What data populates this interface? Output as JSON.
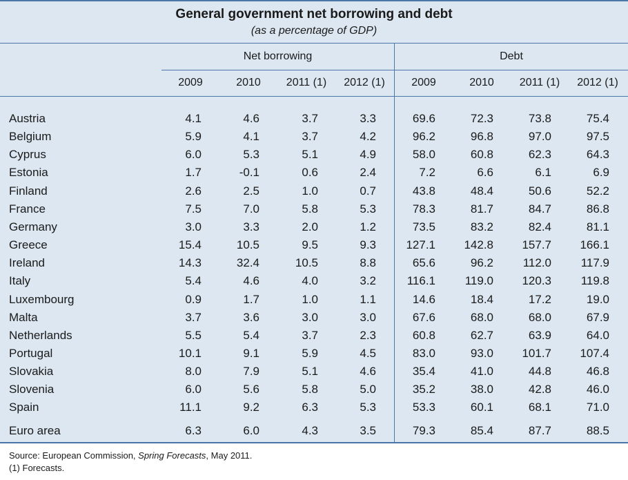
{
  "title": "General government net borrowing and debt",
  "subtitle": "(as a percentage of GDP)",
  "groups": {
    "net_borrowing": "Net borrowing",
    "debt": "Debt"
  },
  "years": [
    "2009",
    "2010",
    "2011 (1)",
    "2012 (1)",
    "2009",
    "2010",
    "2011 (1)",
    "2012 (1)"
  ],
  "rows": [
    {
      "country": "Austria",
      "values": [
        "4.1",
        "4.6",
        "3.7",
        "3.3",
        "69.6",
        "72.3",
        "73.8",
        "75.4"
      ]
    },
    {
      "country": "Belgium",
      "values": [
        "5.9",
        "4.1",
        "3.7",
        "4.2",
        "96.2",
        "96.8",
        "97.0",
        "97.5"
      ]
    },
    {
      "country": "Cyprus",
      "values": [
        "6.0",
        "5.3",
        "5.1",
        "4.9",
        "58.0",
        "60.8",
        "62.3",
        "64.3"
      ]
    },
    {
      "country": "Estonia",
      "values": [
        "1.7",
        "-0.1",
        "0.6",
        "2.4",
        "7.2",
        "6.6",
        "6.1",
        "6.9"
      ]
    },
    {
      "country": "Finland",
      "values": [
        "2.6",
        "2.5",
        "1.0",
        "0.7",
        "43.8",
        "48.4",
        "50.6",
        "52.2"
      ]
    },
    {
      "country": "France",
      "values": [
        "7.5",
        "7.0",
        "5.8",
        "5.3",
        "78.3",
        "81.7",
        "84.7",
        "86.8"
      ]
    },
    {
      "country": "Germany",
      "values": [
        "3.0",
        "3.3",
        "2.0",
        "1.2",
        "73.5",
        "83.2",
        "82.4",
        "81.1"
      ]
    },
    {
      "country": "Greece",
      "values": [
        "15.4",
        "10.5",
        "9.5",
        "9.3",
        "127.1",
        "142.8",
        "157.7",
        "166.1"
      ]
    },
    {
      "country": "Ireland",
      "values": [
        "14.3",
        "32.4",
        "10.5",
        "8.8",
        "65.6",
        "96.2",
        "112.0",
        "117.9"
      ]
    },
    {
      "country": "Italy",
      "values": [
        "5.4",
        "4.6",
        "4.0",
        "3.2",
        "116.1",
        "119.0",
        "120.3",
        "119.8"
      ]
    },
    {
      "country": "Luxembourg",
      "values": [
        "0.9",
        "1.7",
        "1.0",
        "1.1",
        "14.6",
        "18.4",
        "17.2",
        "19.0"
      ]
    },
    {
      "country": "Malta",
      "values": [
        "3.7",
        "3.6",
        "3.0",
        "3.0",
        "67.6",
        "68.0",
        "68.0",
        "67.9"
      ]
    },
    {
      "country": "Netherlands",
      "values": [
        "5.5",
        "5.4",
        "3.7",
        "2.3",
        "60.8",
        "62.7",
        "63.9",
        "64.0"
      ]
    },
    {
      "country": "Portugal",
      "values": [
        "10.1",
        "9.1",
        "5.9",
        "4.5",
        "83.0",
        "93.0",
        "101.7",
        "107.4"
      ]
    },
    {
      "country": "Slovakia",
      "values": [
        "8.0",
        "7.9",
        "5.1",
        "4.6",
        "35.4",
        "41.0",
        "44.8",
        "46.8"
      ]
    },
    {
      "country": "Slovenia",
      "values": [
        "6.0",
        "5.6",
        "5.8",
        "5.0",
        "35.2",
        "38.0",
        "42.8",
        "46.0"
      ]
    },
    {
      "country": "Spain",
      "values": [
        "11.1",
        "9.2",
        "6.3",
        "5.3",
        "53.3",
        "60.1",
        "68.1",
        "71.0"
      ]
    },
    {
      "country": "Euro area",
      "values": [
        "6.3",
        "6.0",
        "4.3",
        "3.5",
        "79.3",
        "85.4",
        "87.7",
        "88.5"
      ]
    }
  ],
  "footer": {
    "source_prefix": "Source: European Commission, ",
    "source_italic": "Spring Forecasts",
    "source_suffix": ", May 2011.",
    "note": "(1) Forecasts."
  }
}
